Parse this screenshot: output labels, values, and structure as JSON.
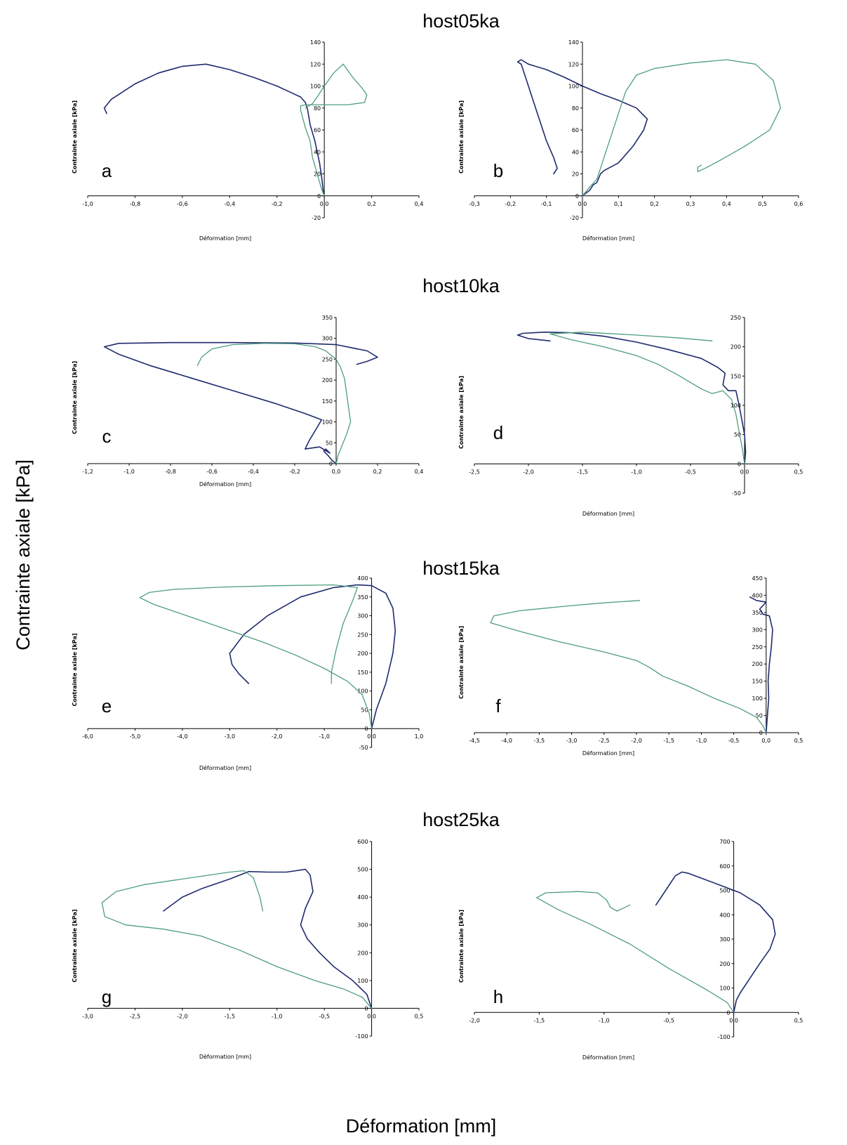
{
  "figure": {
    "y_label": "Contrainte axiale [kPa]",
    "x_label": "Déformation [mm]",
    "group_titles": [
      "host05ka",
      "host10ka",
      "host15ka",
      "host25ka"
    ]
  },
  "colors": {
    "series_1": "#1f2a6e",
    "series_2": "#4e9e7e"
  },
  "chart_data": [
    {
      "type": "line",
      "panel": "a",
      "group": "host05ka",
      "xlabel": "Déformation [mm]",
      "ylabel": "Contrainte axiale [kPa]",
      "xlim": [
        -1.0,
        0.4
      ],
      "ylim": [
        -20,
        140
      ],
      "xticks": [
        "-1,0",
        "-0,8",
        "-0,6",
        "-0,4",
        "-0,2",
        "0,0",
        "0,2",
        "0,4"
      ],
      "yticks": [
        "-20",
        "0",
        "20",
        "40",
        "60",
        "80",
        "100",
        "120",
        "140"
      ],
      "series": [
        {
          "x": [
            0,
            -0.005,
            -0.01,
            -0.02,
            -0.04,
            -0.06,
            -0.07,
            -0.08,
            -0.1,
            -0.15,
            -0.2,
            -0.3,
            -0.4,
            -0.5,
            -0.6,
            -0.7,
            -0.8,
            -0.9,
            -0.93,
            -0.92
          ],
          "y": [
            0,
            5,
            15,
            30,
            50,
            65,
            78,
            85,
            90,
            95,
            100,
            108,
            115,
            120,
            118,
            112,
            102,
            88,
            80,
            75
          ]
        },
        {
          "x": [
            0,
            -0.01,
            -0.03,
            -0.05,
            -0.06,
            -0.08,
            -0.09,
            -0.1,
            -0.1,
            -0.08,
            0.0,
            0.1,
            0.17,
            0.18,
            0.16,
            0.12,
            0.08,
            0.04,
            0.0,
            -0.03,
            -0.05,
            -0.08
          ],
          "y": [
            0,
            5,
            20,
            35,
            50,
            62,
            70,
            78,
            82,
            83,
            83,
            83,
            85,
            92,
            98,
            108,
            120,
            112,
            100,
            90,
            84,
            80
          ]
        }
      ]
    },
    {
      "type": "line",
      "panel": "b",
      "group": "host05ka",
      "xlabel": "Déformation [mm]",
      "ylabel": "Contrainte axiale [kPa]",
      "xlim": [
        -0.3,
        0.6
      ],
      "ylim": [
        -20,
        140
      ],
      "xticks": [
        "-0,3",
        "-0,2",
        "-0,1",
        "0,0",
        "0,1",
        "0,2",
        "0,3",
        "0,4",
        "0,5",
        "0,6"
      ],
      "yticks": [
        "-20",
        "0",
        "20",
        "40",
        "60",
        "80",
        "100",
        "120",
        "140"
      ],
      "series": [
        {
          "x": [
            0,
            0.02,
            0.03,
            0.04,
            0.05,
            0.06,
            0.1,
            0.14,
            0.17,
            0.18,
            0.15,
            0.1,
            0.05,
            0.0,
            -0.05,
            -0.1,
            -0.15,
            -0.17,
            -0.18,
            -0.17,
            -0.16,
            -0.14,
            -0.12,
            -0.1,
            -0.08,
            -0.07,
            -0.08
          ],
          "y": [
            0,
            5,
            10,
            12,
            20,
            23,
            30,
            45,
            60,
            70,
            80,
            87,
            93,
            100,
            108,
            115,
            120,
            124,
            122,
            120,
            110,
            90,
            70,
            50,
            35,
            25,
            20
          ]
        },
        {
          "x": [
            0,
            0.02,
            0.04,
            0.05,
            0.07,
            0.09,
            0.1,
            0.12,
            0.15,
            0.2,
            0.3,
            0.4,
            0.48,
            0.53,
            0.55,
            0.52,
            0.45,
            0.38,
            0.34,
            0.32,
            0.32,
            0.33
          ],
          "y": [
            0,
            8,
            15,
            25,
            45,
            65,
            75,
            95,
            110,
            116,
            121,
            124,
            120,
            105,
            80,
            60,
            45,
            32,
            25,
            22,
            26,
            28
          ]
        }
      ]
    },
    {
      "type": "line",
      "panel": "c",
      "group": "host10ka",
      "xlabel": "Déformation [mm]",
      "ylabel": "Contrainte axiale [kPa]",
      "xlim": [
        -1.2,
        0.4
      ],
      "ylim": [
        0,
        350
      ],
      "xticks": [
        "-1,2",
        "-1,0",
        "-0,8",
        "-0,6",
        "-0,4",
        "-0,2",
        "0,0",
        "0,2",
        "0,4"
      ],
      "yticks": [
        "0",
        "50",
        "100",
        "150",
        "200",
        "250",
        "300",
        "350"
      ],
      "series": [
        {
          "x": [
            0,
            -0.02,
            -0.04,
            -0.06,
            -0.05,
            -0.03,
            -0.08,
            -0.15,
            -0.13,
            -0.1,
            -0.07,
            -0.15,
            -0.3,
            -0.5,
            -0.7,
            -0.9,
            -1.05,
            -1.12,
            -1.05,
            -0.8,
            -0.5,
            -0.2,
            0.0,
            0.15,
            0.2,
            0.15,
            0.1
          ],
          "y": [
            0,
            8,
            20,
            30,
            35,
            25,
            40,
            35,
            55,
            80,
            105,
            120,
            145,
            175,
            205,
            235,
            262,
            280,
            288,
            290,
            290,
            289,
            285,
            270,
            255,
            245,
            238
          ]
        },
        {
          "x": [
            0,
            0.01,
            0.03,
            0.05,
            0.07,
            0.06,
            0.05,
            0.04,
            0.02,
            0.0,
            -0.05,
            -0.1,
            -0.2,
            -0.35,
            -0.5,
            -0.6,
            -0.65,
            -0.67
          ],
          "y": [
            0,
            20,
            45,
            70,
            100,
            135,
            170,
            205,
            232,
            250,
            270,
            280,
            287,
            288,
            285,
            275,
            255,
            235
          ]
        }
      ]
    },
    {
      "type": "line",
      "panel": "d",
      "group": "host10ka",
      "xlabel": "Déformation [mm]",
      "ylabel": "Contrainte axiale [kPa]",
      "xlim": [
        -2.5,
        0.5
      ],
      "ylim": [
        -50,
        250
      ],
      "xticks": [
        "-2,5",
        "-2,0",
        "-1,5",
        "-1,0",
        "-0,5",
        "0,0",
        "0,5"
      ],
      "yticks": [
        "-50",
        "0",
        "50",
        "100",
        "150",
        "200",
        "250"
      ],
      "series": [
        {
          "x": [
            0,
            0.01,
            0.0,
            -0.03,
            -0.05,
            -0.08,
            -0.15,
            -0.2,
            -0.18,
            -0.25,
            -0.4,
            -0.7,
            -1.0,
            -1.3,
            -1.6,
            -1.85,
            -2.05,
            -2.1,
            -2.0,
            -1.8
          ],
          "y": [
            0,
            20,
            50,
            80,
            100,
            125,
            125,
            135,
            155,
            165,
            180,
            195,
            208,
            218,
            224,
            225,
            223,
            220,
            214,
            210
          ]
        },
        {
          "x": [
            0,
            -0.02,
            -0.05,
            -0.08,
            -0.12,
            -0.2,
            -0.3,
            -0.4,
            -0.6,
            -0.8,
            -1.0,
            -1.3,
            -1.6,
            -1.8,
            -1.5,
            -1.0,
            -0.6,
            -0.3
          ],
          "y": [
            0,
            25,
            55,
            85,
            110,
            125,
            120,
            128,
            150,
            170,
            185,
            200,
            212,
            222,
            225,
            220,
            215,
            210
          ]
        }
      ]
    },
    {
      "type": "line",
      "panel": "e",
      "group": "host15ka",
      "xlabel": "Déformation [mm]",
      "ylabel": "Contrainte axiale [kPa]",
      "xlim": [
        -6.0,
        1.0
      ],
      "ylim": [
        -50,
        400
      ],
      "xticks": [
        "-6,0",
        "-5,0",
        "-4,0",
        "-3,0",
        "-2,0",
        "-1,0",
        "0,0",
        "1,0"
      ],
      "yticks": [
        "-50",
        "0",
        "50",
        "100",
        "150",
        "200",
        "250",
        "300",
        "350",
        "400"
      ],
      "series": [
        {
          "x": [
            0,
            0.1,
            0.3,
            0.45,
            0.5,
            0.45,
            0.3,
            0.0,
            -0.3,
            -0.8,
            -1.5,
            -2.2,
            -2.7,
            -3.0,
            -2.95,
            -2.8,
            -2.6
          ],
          "y": [
            0,
            50,
            120,
            200,
            260,
            320,
            360,
            380,
            382,
            375,
            350,
            300,
            250,
            200,
            170,
            145,
            120
          ]
        },
        {
          "x": [
            0,
            -0.05,
            -0.2,
            -0.5,
            -1.0,
            -1.6,
            -2.3,
            -3.1,
            -3.9,
            -4.6,
            -4.9,
            -4.7,
            -4.2,
            -3.2,
            -2.0,
            -0.8,
            -0.3,
            -0.4,
            -0.6,
            -0.75,
            -0.85,
            -0.85
          ],
          "y": [
            0,
            40,
            90,
            125,
            160,
            195,
            230,
            265,
            300,
            330,
            348,
            362,
            370,
            376,
            380,
            382,
            375,
            340,
            280,
            210,
            150,
            120
          ]
        }
      ]
    },
    {
      "type": "line",
      "panel": "f",
      "group": "host15ka",
      "xlabel": "Déformation [mm]",
      "ylabel": "Contrainte axiale [kPa]",
      "xlim": [
        -4.5,
        0.5
      ],
      "ylim": [
        0,
        450
      ],
      "xticks": [
        "-4,5",
        "-4,0",
        "-3,5",
        "-3,0",
        "-2,5",
        "-2,0",
        "-1,5",
        "-1,0",
        "-0,5",
        "0,0",
        "0,5"
      ],
      "yticks": [
        "0",
        "50",
        "100",
        "150",
        "200",
        "250",
        "300",
        "350",
        "400",
        "450"
      ],
      "series": [
        {
          "x": [
            0,
            0.02,
            0.04,
            0.03,
            0.05,
            0.08,
            0.1,
            0.05,
            -0.05,
            -0.1,
            0.0,
            -0.15,
            -0.2,
            -0.25
          ],
          "y": [
            0,
            50,
            100,
            150,
            200,
            250,
            300,
            340,
            345,
            360,
            380,
            385,
            390,
            395
          ]
        },
        {
          "x": [
            0,
            -0.05,
            -0.15,
            -0.4,
            -0.8,
            -1.2,
            -1.6,
            -1.8,
            -2.0,
            -2.5,
            -3.2,
            -3.8,
            -4.25,
            -4.2,
            -3.8,
            -3.0,
            -2.5,
            -1.95
          ],
          "y": [
            0,
            20,
            45,
            70,
            100,
            135,
            165,
            190,
            210,
            235,
            265,
            295,
            320,
            340,
            355,
            370,
            378,
            385
          ]
        }
      ]
    },
    {
      "type": "line",
      "panel": "g",
      "group": "host25ka",
      "xlabel": "Déformation [mm]",
      "ylabel": "Contrainte axiale [kPa]",
      "xlim": [
        -3.0,
        0.5
      ],
      "ylim": [
        -100,
        600
      ],
      "xticks": [
        "-3,0",
        "-2,5",
        "-2,0",
        "-1,5",
        "-1,0",
        "-0,5",
        "0,0",
        "0,5"
      ],
      "yticks": [
        "-100",
        "0",
        "100",
        "200",
        "300",
        "400",
        "500",
        "600"
      ],
      "series": [
        {
          "x": [
            0,
            -0.05,
            -0.2,
            -0.4,
            -0.55,
            -0.68,
            -0.75,
            -0.7,
            -0.62,
            -0.65,
            -0.7,
            -0.9,
            -1.1,
            -1.3,
            -1.35,
            -1.5,
            -1.8,
            -2.0,
            -2.2
          ],
          "y": [
            0,
            50,
            100,
            150,
            200,
            250,
            300,
            360,
            420,
            480,
            500,
            490,
            490,
            492,
            485,
            465,
            430,
            400,
            350
          ]
        },
        {
          "x": [
            0,
            -0.1,
            -0.3,
            -0.6,
            -1.0,
            -1.4,
            -1.8,
            -2.2,
            -2.6,
            -2.82,
            -2.85,
            -2.7,
            -2.4,
            -1.9,
            -1.5,
            -1.35,
            -1.25,
            -1.18,
            -1.15
          ],
          "y": [
            0,
            40,
            70,
            100,
            150,
            210,
            260,
            285,
            300,
            330,
            380,
            420,
            445,
            470,
            490,
            495,
            470,
            400,
            350
          ]
        }
      ]
    },
    {
      "type": "line",
      "panel": "h",
      "group": "host25ka",
      "xlabel": "Déformation [mm]",
      "ylabel": "Contrainte axiale [kPa]",
      "xlim": [
        -2.0,
        0.5
      ],
      "ylim": [
        -100,
        700
      ],
      "xticks": [
        "-2,0",
        "-1,5",
        "-1,0",
        "-0,5",
        "0,0",
        "0,5"
      ],
      "yticks": [
        "-100",
        "0",
        "100",
        "200",
        "300",
        "400",
        "500",
        "600",
        "700"
      ],
      "series": [
        {
          "x": [
            0,
            0.02,
            0.05,
            0.1,
            0.2,
            0.28,
            0.32,
            0.3,
            0.2,
            0.05,
            -0.1,
            -0.25,
            -0.35,
            -0.4,
            -0.45,
            -0.5,
            -0.55,
            -0.6
          ],
          "y": [
            0,
            50,
            80,
            120,
            200,
            260,
            320,
            380,
            440,
            490,
            520,
            550,
            570,
            575,
            560,
            520,
            480,
            440
          ]
        },
        {
          "x": [
            0,
            -0.05,
            -0.2,
            -0.5,
            -0.8,
            -1.1,
            -1.35,
            -1.52,
            -1.45,
            -1.2,
            -1.05,
            -0.98,
            -0.95,
            -0.9,
            -0.8
          ],
          "y": [
            0,
            40,
            90,
            180,
            280,
            360,
            420,
            470,
            490,
            495,
            490,
            460,
            430,
            415,
            440
          ]
        }
      ]
    }
  ]
}
